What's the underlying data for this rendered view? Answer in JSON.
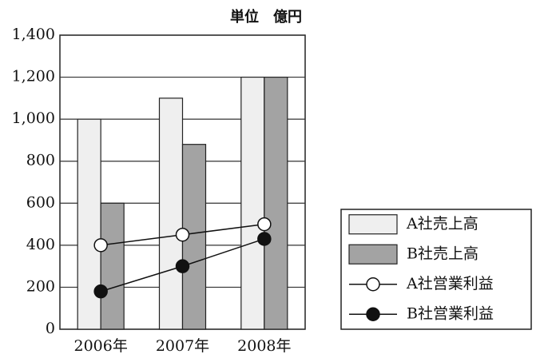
{
  "chart_data": {
    "type": "bar",
    "title": "単位　億円",
    "categories": [
      "2006年",
      "2007年",
      "2008年"
    ],
    "series": [
      {
        "name": "A社売上高",
        "type": "bar",
        "color": "#efefef",
        "values": [
          1000,
          1100,
          1200
        ]
      },
      {
        "name": "B社売上高",
        "type": "bar",
        "color": "#a3a3a3",
        "values": [
          600,
          880,
          1200
        ]
      },
      {
        "name": "A社営業利益",
        "type": "line",
        "color": "#ffffff",
        "values": [
          400,
          450,
          500
        ]
      },
      {
        "name": "B社営業利益",
        "type": "line",
        "color": "#111111",
        "values": [
          180,
          300,
          430
        ]
      }
    ],
    "ylim": [
      0,
      1400
    ],
    "yticks": [
      0,
      200,
      400,
      600,
      800,
      {
        "value": 1000,
        "label": "1,000"
      },
      {
        "value": 1200,
        "label": "1,200"
      },
      {
        "value": 1400,
        "label": "1,400"
      }
    ],
    "grid": true,
    "legend": "right"
  }
}
